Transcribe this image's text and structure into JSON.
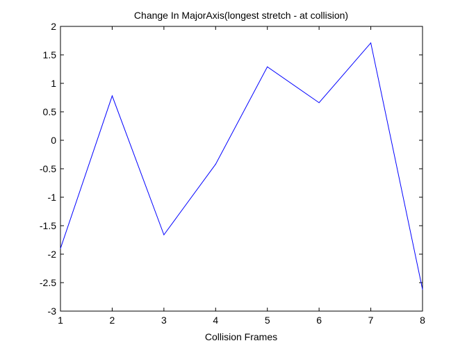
{
  "chart_data": {
    "type": "line",
    "title": "Change In MajorAxis(longest stretch - at collision)",
    "xlabel": "Collision Frames",
    "ylabel": "",
    "xlim": [
      1,
      8
    ],
    "ylim": [
      -3,
      2
    ],
    "xticks": [
      1,
      2,
      3,
      4,
      5,
      6,
      7,
      8
    ],
    "yticks": [
      -3,
      -2.5,
      -2,
      -1.5,
      -1,
      -0.5,
      0,
      0.5,
      1,
      1.5,
      2
    ],
    "grid": false,
    "series": [
      {
        "x": [
          1,
          2,
          3,
          4,
          5,
          6,
          7,
          8
        ],
        "y": [
          -1.9,
          0.78,
          -1.66,
          -0.42,
          1.29,
          0.66,
          1.71,
          -2.62
        ],
        "color": "#0000ff"
      }
    ]
  }
}
